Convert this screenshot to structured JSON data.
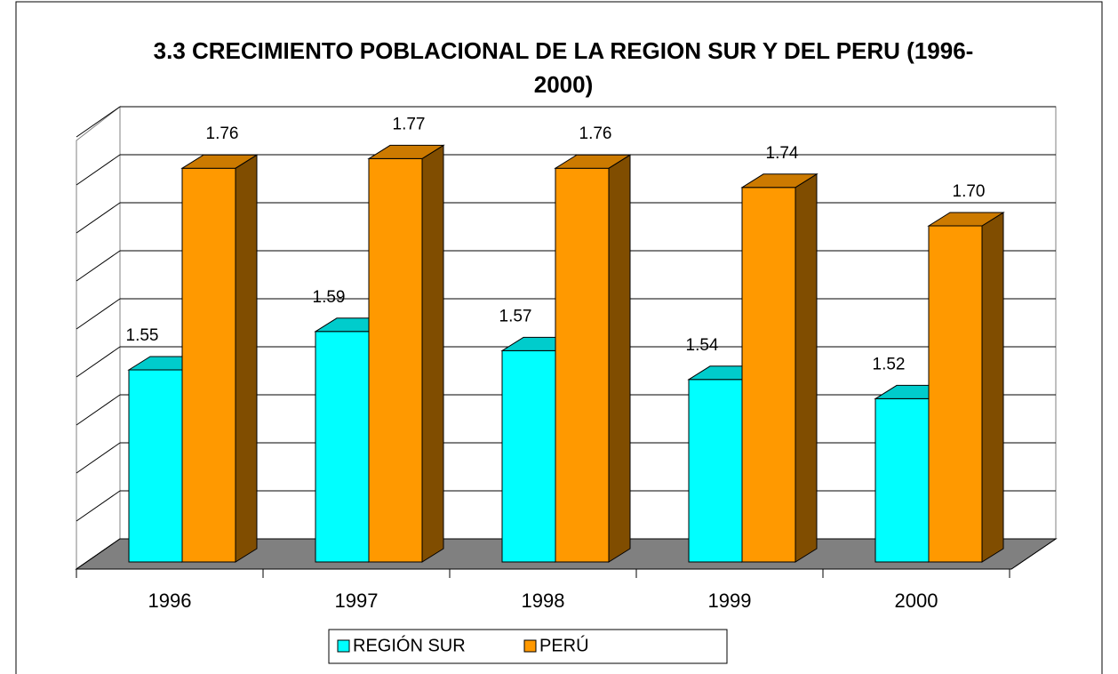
{
  "chart_data": {
    "type": "bar3d",
    "title": "3.3 CRECIMIENTO POBLACIONAL DE LA REGION SUR Y DEL PERU (1996-2000)",
    "categories": [
      "1996",
      "1997",
      "1998",
      "1999",
      "2000"
    ],
    "series": [
      {
        "name": "REGIÓN SUR",
        "color": "#00ffff",
        "values": [
          1.55,
          1.59,
          1.57,
          1.54,
          1.52
        ],
        "value_labels": [
          "1.55",
          "1.59",
          "1.57",
          "1.54",
          "1.52"
        ]
      },
      {
        "name": "PERÚ",
        "color": "#ff9900",
        "values": [
          1.76,
          1.77,
          1.76,
          1.74,
          1.7
        ],
        "value_labels": [
          "1.76",
          "1.77",
          "1.76",
          "1.74",
          "1.70"
        ]
      }
    ],
    "ylim": [
      1.35,
      1.8
    ],
    "yticks": [
      1.35,
      1.4,
      1.45,
      1.5,
      1.55,
      1.6,
      1.65,
      1.7,
      1.75,
      1.8
    ],
    "grid": true
  }
}
